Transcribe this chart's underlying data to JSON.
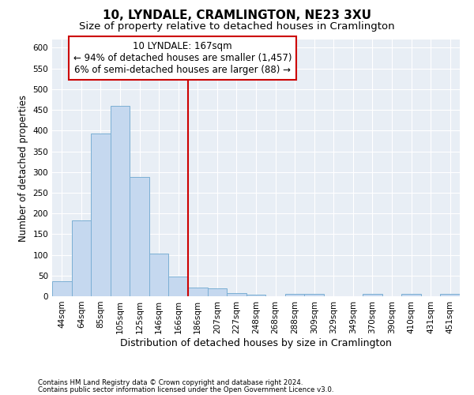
{
  "title": "10, LYNDALE, CRAMLINGTON, NE23 3XU",
  "subtitle": "Size of property relative to detached houses in Cramlington",
  "xlabel": "Distribution of detached houses by size in Cramlington",
  "ylabel": "Number of detached properties",
  "categories": [
    "44sqm",
    "64sqm",
    "85sqm",
    "105sqm",
    "125sqm",
    "146sqm",
    "166sqm",
    "186sqm",
    "207sqm",
    "227sqm",
    "248sqm",
    "268sqm",
    "288sqm",
    "309sqm",
    "329sqm",
    "349sqm",
    "370sqm",
    "390sqm",
    "410sqm",
    "431sqm",
    "451sqm"
  ],
  "values": [
    37,
    183,
    393,
    460,
    288,
    103,
    47,
    21,
    19,
    8,
    4,
    0,
    5,
    5,
    0,
    0,
    5,
    0,
    5,
    0,
    5
  ],
  "bar_color": "#c5d8ef",
  "bar_edge_color": "#7bafd4",
  "vline_x": 6.5,
  "vline_color": "#cc0000",
  "annotation_title": "10 LYNDALE: 167sqm",
  "annotation_line1": "← 94% of detached houses are smaller (1,457)",
  "annotation_line2": "6% of semi-detached houses are larger (88) →",
  "annotation_box_color": "#ffffff",
  "annotation_box_edge_color": "#cc0000",
  "ylim": [
    0,
    620
  ],
  "yticks": [
    0,
    50,
    100,
    150,
    200,
    250,
    300,
    350,
    400,
    450,
    500,
    550,
    600
  ],
  "footnote1": "Contains HM Land Registry data © Crown copyright and database right 2024.",
  "footnote2": "Contains public sector information licensed under the Open Government Licence v3.0.",
  "fig_bg_color": "#ffffff",
  "plot_bg_color": "#e8eef5",
  "grid_color": "#ffffff",
  "title_fontsize": 11,
  "subtitle_fontsize": 9.5,
  "xlabel_fontsize": 9,
  "ylabel_fontsize": 8.5,
  "tick_fontsize": 7.5,
  "annotation_fontsize": 8.5
}
